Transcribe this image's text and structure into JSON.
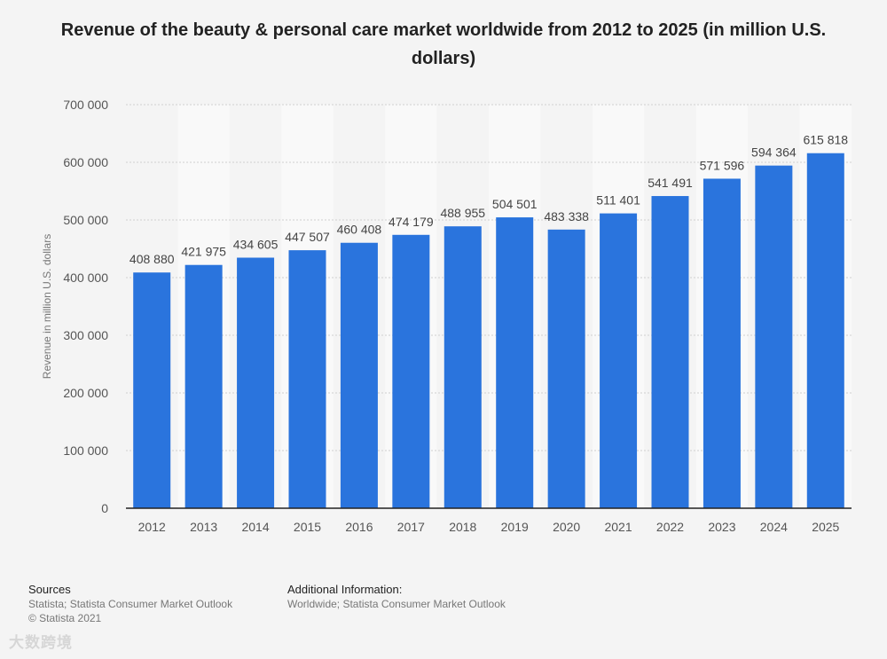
{
  "title": "Revenue of the beauty & personal care market worldwide from 2012 to 2025 (in million U.S. dollars)",
  "chart_data": {
    "type": "bar",
    "categories": [
      "2012",
      "2013",
      "2014",
      "2015",
      "2016",
      "2017",
      "2018",
      "2019",
      "2020",
      "2021",
      "2022",
      "2023",
      "2024",
      "2025"
    ],
    "values": [
      408880,
      421975,
      434605,
      447507,
      460408,
      474179,
      488955,
      504501,
      483338,
      511401,
      541491,
      571596,
      594364,
      615818
    ],
    "data_labels": [
      "408 880",
      "421 975",
      "434 605",
      "447 507",
      "460 408",
      "474 179",
      "488 955",
      "504 501",
      "483 338",
      "511 401",
      "541 491",
      "571 596",
      "594 364",
      "615 818"
    ],
    "ylim": [
      0,
      700000
    ],
    "yticks": [
      0,
      100000,
      200000,
      300000,
      400000,
      500000,
      600000,
      700000
    ],
    "ytick_labels": [
      "0",
      "100 000",
      "200 000",
      "300 000",
      "400 000",
      "500 000",
      "600 000",
      "700 000"
    ],
    "ylabel": "Revenue in million U.S. dollars",
    "xlabel": "",
    "bar_color": "#2a74dd"
  },
  "footer": {
    "sources_heading": "Sources",
    "sources_line1": "Statista; Statista Consumer Market Outlook",
    "sources_line2": "© Statista 2021",
    "info_heading": "Additional Information:",
    "info_line1": "Worldwide; Statista Consumer Market Outlook"
  },
  "watermark": "大数跨境"
}
